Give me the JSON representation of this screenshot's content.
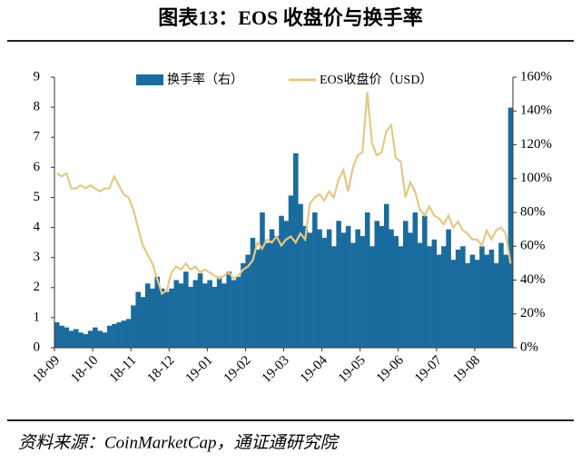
{
  "chart_data": {
    "type": "bar_line",
    "title": "图表13：EOS 收盘价与换手率",
    "source": "资料来源：CoinMarketCap，通证通研究院",
    "categories": [
      "18-09",
      null,
      null,
      null,
      null,
      null,
      null,
      null,
      "18-10",
      null,
      null,
      null,
      null,
      null,
      null,
      null,
      "18-11",
      null,
      null,
      null,
      null,
      null,
      null,
      null,
      "18-12",
      null,
      null,
      null,
      null,
      null,
      null,
      null,
      "19-01",
      null,
      null,
      null,
      null,
      null,
      null,
      null,
      "19-02",
      null,
      null,
      null,
      null,
      null,
      null,
      null,
      "19-03",
      null,
      null,
      null,
      null,
      null,
      null,
      null,
      "19-04",
      null,
      null,
      null,
      null,
      null,
      null,
      null,
      "19-05",
      null,
      null,
      null,
      null,
      null,
      null,
      null,
      "19-06",
      null,
      null,
      null,
      null,
      null,
      null,
      null,
      "19-07",
      null,
      null,
      null,
      null,
      null,
      null,
      null,
      "19-08",
      null,
      null,
      null,
      null,
      null,
      null,
      null
    ],
    "series": [
      {
        "name": "换手率（右）",
        "type": "bar",
        "axis": "y2",
        "color": "#1b6c9e",
        "values": [
          15,
          13,
          12,
          10,
          11,
          9,
          8,
          10,
          12,
          10,
          9,
          13,
          14,
          15,
          16,
          17,
          25,
          33,
          30,
          38,
          35,
          42,
          35,
          33,
          35,
          40,
          38,
          45,
          36,
          40,
          44,
          38,
          40,
          36,
          42,
          38,
          45,
          40,
          42,
          50,
          55,
          65,
          58,
          80,
          62,
          70,
          66,
          78,
          75,
          90,
          115,
          85,
          72,
          68,
          80,
          70,
          65,
          70,
          60,
          75,
          68,
          72,
          62,
          70,
          66,
          80,
          60,
          75,
          72,
          85,
          70,
          66,
          60,
          75,
          68,
          80,
          62,
          78,
          60,
          64,
          55,
          60,
          70,
          52,
          58,
          60,
          50,
          55,
          52,
          60,
          55,
          58,
          50,
          62,
          55,
          142
        ]
      },
      {
        "name": "EOS收盘价（USD）",
        "type": "line",
        "color": "#e6c884",
        "values": [
          5.8,
          5.7,
          5.8,
          5.3,
          5.3,
          5.4,
          5.3,
          5.4,
          5.3,
          5.2,
          5.3,
          5.3,
          5.7,
          5.4,
          5.1,
          5.0,
          4.6,
          4.0,
          3.4,
          3.1,
          2.8,
          2.3,
          1.8,
          1.9,
          2.5,
          2.7,
          2.6,
          2.8,
          2.6,
          2.7,
          2.5,
          2.6,
          2.5,
          2.4,
          2.3,
          2.4,
          2.5,
          2.3,
          2.4,
          2.6,
          2.7,
          2.9,
          3.5,
          3.3,
          3.6,
          3.5,
          3.7,
          3.4,
          3.6,
          3.7,
          3.5,
          3.8,
          3.6,
          4.8,
          5.0,
          5.1,
          4.9,
          5.2,
          5.0,
          5.6,
          5.9,
          5.2,
          6.0,
          6.4,
          6.5,
          8.5,
          6.8,
          6.4,
          6.5,
          7.2,
          7.4,
          6.3,
          6.2,
          5.0,
          5.5,
          5.2,
          4.6,
          4.4,
          4.7,
          4.4,
          4.3,
          4.1,
          4.4,
          4.0,
          4.2,
          3.9,
          3.8,
          3.6,
          3.6,
          3.4,
          3.9,
          3.6,
          3.9,
          4.0,
          3.8,
          2.8
        ]
      }
    ],
    "ylim": [
      0,
      9
    ],
    "yticks": [
      0,
      1,
      2,
      3,
      4,
      5,
      6,
      7,
      8,
      9
    ],
    "y2lim": [
      0,
      160
    ],
    "y2ticks": [
      {
        "value": 0,
        "label": "0%"
      },
      {
        "value": 20,
        "label": "20%"
      },
      {
        "value": 40,
        "label": "40%"
      },
      {
        "value": 60,
        "label": "60%"
      },
      {
        "value": 80,
        "label": "80%"
      },
      {
        "value": 100,
        "label": "100%"
      },
      {
        "value": 120,
        "label": "120%"
      },
      {
        "value": 140,
        "label": "140%"
      },
      {
        "value": 160,
        "label": "160%"
      }
    ],
    "legend": "top"
  }
}
